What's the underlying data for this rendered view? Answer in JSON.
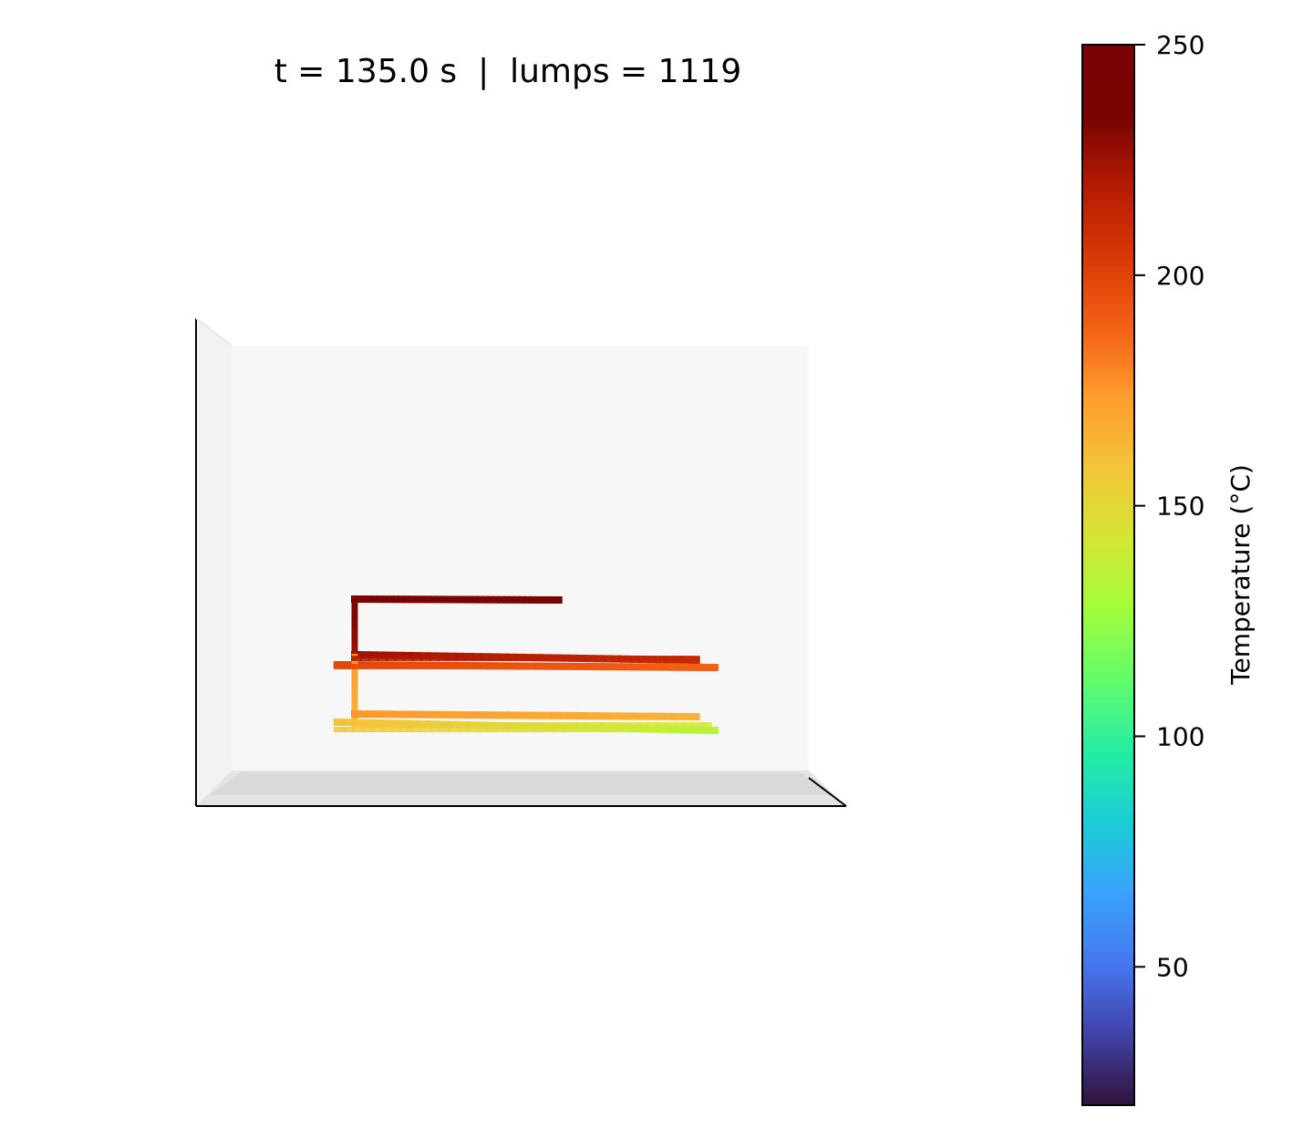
{
  "title": "t = 135.0 s  |  lumps = 1119",
  "colorbar": {
    "label": "Temperature (°C)",
    "vmin": 20,
    "vmax": 250,
    "ticks": [
      50,
      100,
      150,
      200,
      250
    ],
    "tick_labels": [
      "50",
      "100",
      "150",
      "200",
      "250"
    ],
    "colormap": "turbo"
  },
  "chart_data": {
    "type": "scatter",
    "title": "t = 135.0 s  |  lumps = 1119",
    "time_s": 135.0,
    "lumps": 1119,
    "view": "3D scatter, viewed from the front, axes hidden",
    "color_variable": "Temperature (°C)",
    "series": [
      {
        "segment": "top horizontal run",
        "temperature_range": [
          240,
          250
        ],
        "x_range": [
          0.0,
          0.35
        ],
        "level": "highest"
      },
      {
        "segment": "upper vertical riser",
        "temperature_range": [
          225,
          235
        ],
        "x_range": [
          0.0,
          0.02
        ],
        "level": "upper"
      },
      {
        "segment": "upper horizontal run",
        "temperature_range": [
          210,
          225
        ],
        "x_range": [
          0.0,
          0.58
        ],
        "level": "upper-middle"
      },
      {
        "segment": "middle horizontal run",
        "temperature_range": [
          190,
          200
        ],
        "x_range": [
          -0.03,
          0.61
        ],
        "level": "middle"
      },
      {
        "segment": "lower vertical riser",
        "temperature_range": [
          165,
          175
        ],
        "x_range": [
          0.0,
          0.02
        ],
        "level": "middle-lower"
      },
      {
        "segment": "lower horizontal run",
        "temperature_range": [
          165,
          175
        ],
        "x_range": [
          0.0,
          0.58
        ],
        "level": "lower"
      },
      {
        "segment": "bottom horizontal runs",
        "temperature_range": [
          130,
          160
        ],
        "x_range": [
          -0.03,
          0.61
        ],
        "level": "lowest"
      }
    ]
  }
}
